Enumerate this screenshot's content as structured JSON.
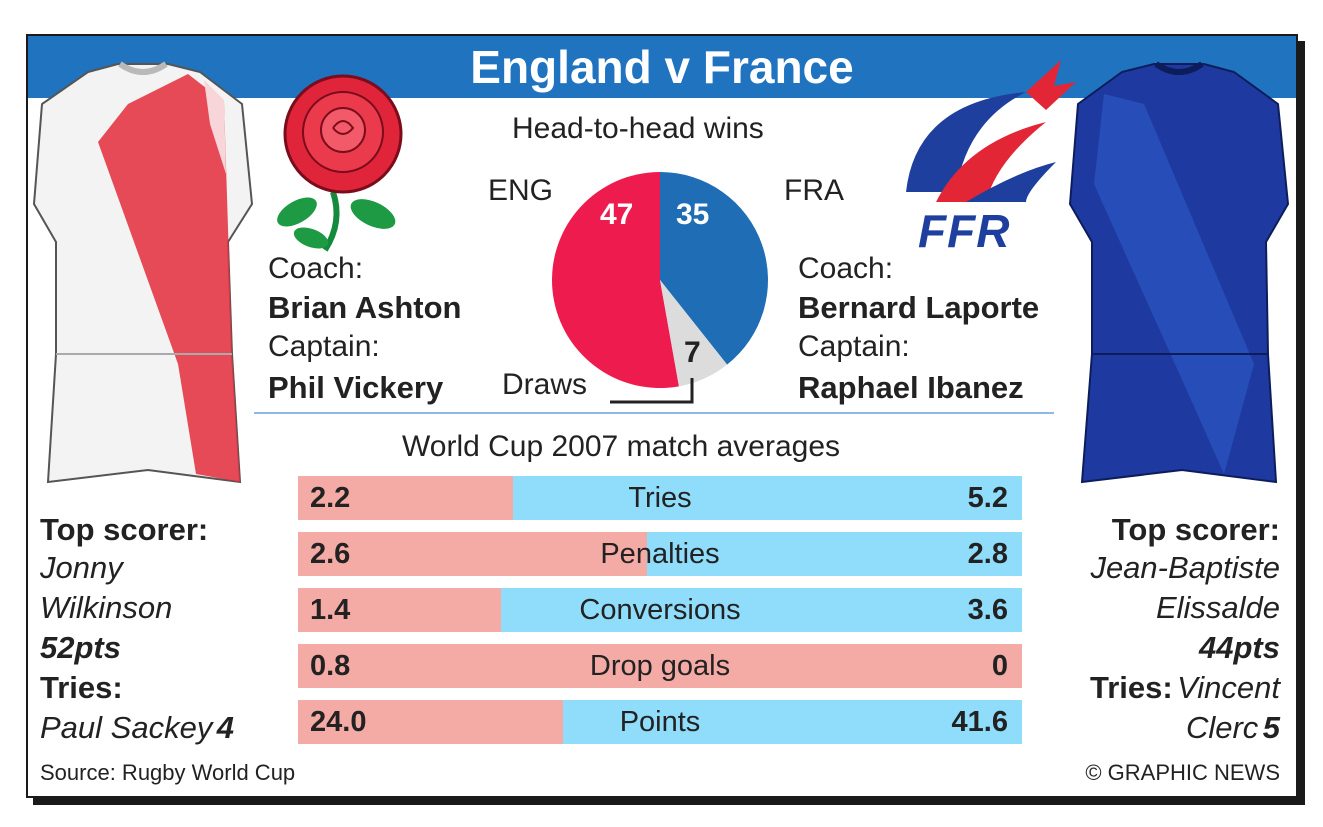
{
  "title": "England v France",
  "head_to_head": {
    "heading": "Head-to-head wins",
    "eng_label": "ENG",
    "fra_label": "FRA",
    "draws_label": "Draws",
    "eng_wins": "47",
    "fra_wins": "35",
    "draws": "7"
  },
  "england": {
    "coach_label": "Coach:",
    "coach": "Brian Ashton",
    "captain_label": "Captain:",
    "captain": "Phil Vickery",
    "top_scorer_label": "Top scorer:",
    "top_scorer_line1": "Jonny",
    "top_scorer_line2": "Wilkinson",
    "top_scorer_pts": "52pts",
    "tries_label": "Tries:",
    "tries_player": "Paul Sackey",
    "tries_count": "4"
  },
  "france": {
    "logo_text": "FFR",
    "coach_label": "Coach:",
    "coach": "Bernard Laporte",
    "captain_label": "Captain:",
    "captain": "Raphael Ibanez",
    "top_scorer_label": "Top scorer:",
    "top_scorer_line1": "Jean-Baptiste",
    "top_scorer_line2": "Elissalde",
    "top_scorer_pts": "44pts",
    "tries_label": "Tries:",
    "tries_player_line1": "Vincent",
    "tries_player_line2": "Clerc",
    "tries_count": "5"
  },
  "averages_heading": "World Cup 2007 match averages",
  "source": "Source: Rugby World Cup",
  "credit": "© GRAPHIC NEWS",
  "colors": {
    "title_blue": "#1f73bf",
    "england_red": "#ee1c4e",
    "france_blue": "#1f6db4",
    "draws_grey": "#dcdcdc",
    "eng_bar": "#f4aaa5",
    "fra_bar": "#8fdcfb"
  },
  "chart_data": [
    {
      "type": "pie",
      "title": "Head-to-head wins",
      "categories": [
        "ENG",
        "FRA",
        "Draws"
      ],
      "values": [
        47,
        35,
        7
      ]
    },
    {
      "type": "bar",
      "title": "World Cup 2007 match averages",
      "categories": [
        "Tries",
        "Penalties",
        "Conversions",
        "Drop goals",
        "Points"
      ],
      "eng_display": [
        "2.2",
        "2.6",
        "1.4",
        "0.8",
        "24.0"
      ],
      "fra_display": [
        "5.2",
        "2.8",
        "3.6",
        "0",
        "41.6"
      ],
      "series": [
        {
          "values": [
            2.2,
            2.6,
            1.4,
            0.8,
            24.0
          ]
        },
        {
          "values": [
            5.2,
            2.8,
            3.6,
            0,
            41.6
          ]
        }
      ]
    }
  ]
}
